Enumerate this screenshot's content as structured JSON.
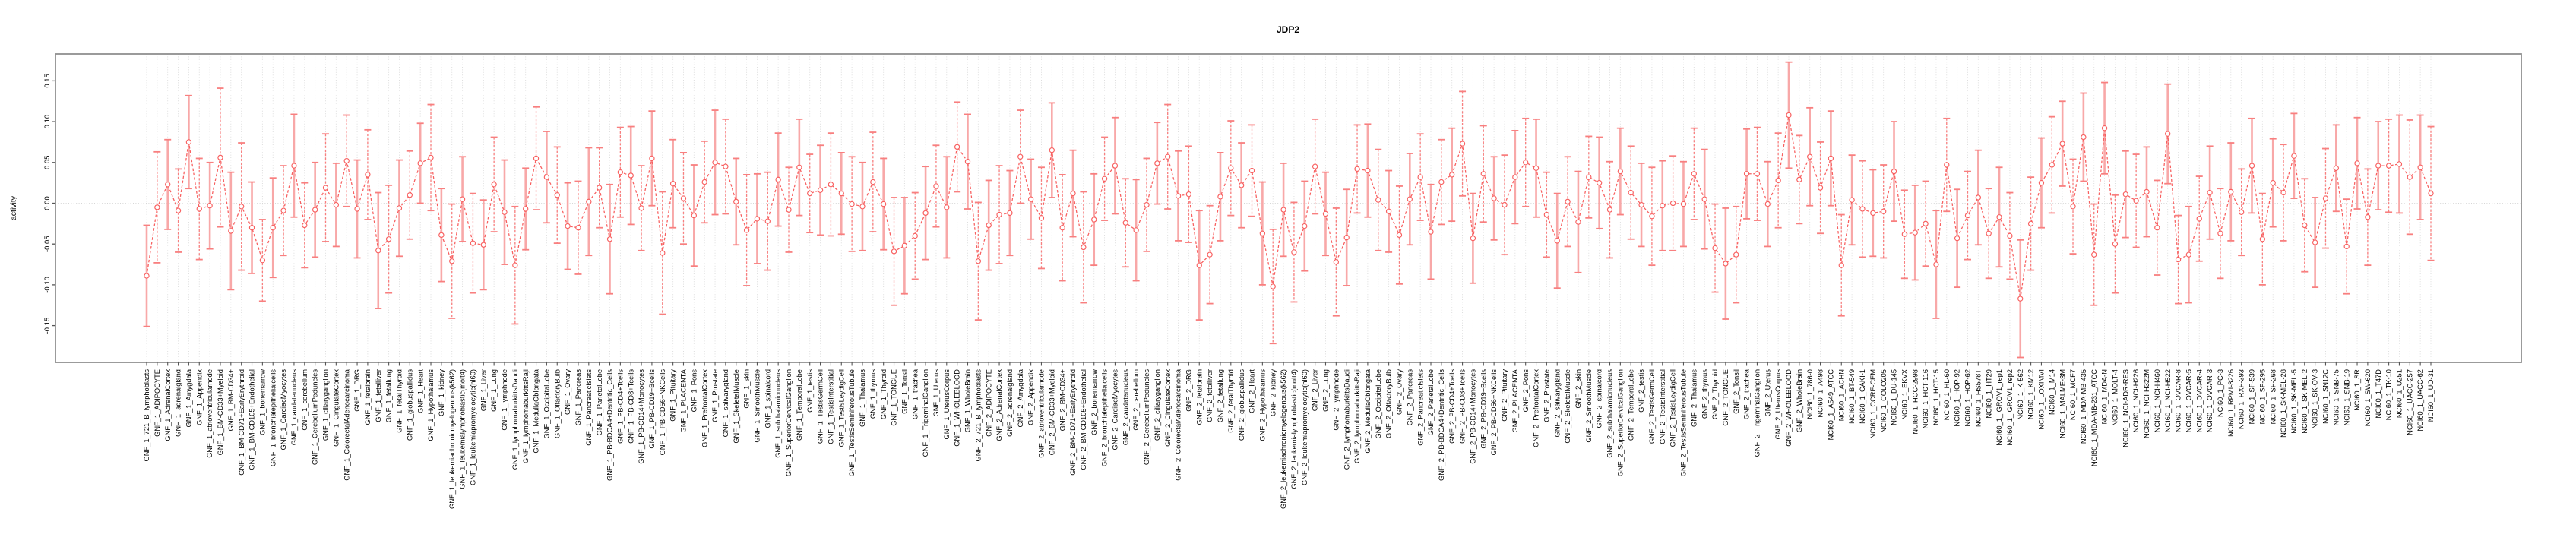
{
  "chart_data": {
    "type": "scatter",
    "title": "JDP2",
    "xlabel": "",
    "ylabel": "activity",
    "ylim": [
      -0.195,
      0.185
    ],
    "grid": "vertical-dotted-per-category-plus-zero-line",
    "legend": "none",
    "marker": "open-circle",
    "line_style": "dashed",
    "colors": {
      "series": "#f85f5f",
      "errorbar_solid": "#f8a8a8",
      "errorbar_dashed": "#f87f7f",
      "gridline": "#dadada",
      "frame": "#909090"
    },
    "yticks": {
      "values": [
        0.15,
        0.1,
        0.05,
        0.0,
        -0.05,
        -0.1,
        -0.15
      ],
      "labels": [
        "0.15",
        "0.10",
        "0.05",
        "0.00",
        "-0.05",
        "-0.10",
        "-0.15"
      ]
    },
    "categories": [
      "GNF_1_721_B_lymphoblasts",
      "GNF_1_ADIPOCYTE",
      "GNF_1_AdrenalCortex",
      "GNF_1_adrenalgland",
      "GNF_1_Amygdala",
      "GNF_1_Appendix",
      "GNF_1_atrioventricularnode",
      "GNF_1_BM-CD33+Myeloid",
      "GNF_1_BM-CD34+",
      "GNF_1_BM-CD71+EarlyErythroid",
      "GNF_1_BM-CD105+Endothelial",
      "GNF_1_bonemarrow",
      "GNF_1_bronchialepithelialcells",
      "GNF_1_CardiacMyocytes",
      "GNF_1_caudatenucleus",
      "GNF_1_cerebellum",
      "GNF_1_CerebellumPeduncles",
      "GNF_1_ciliaryganglion",
      "GNF_1_CingulateCortex",
      "GNF_1_ColorectalAdenocarcinoma",
      "GNF_1_DRG",
      "GNF_1_fetalbrain",
      "GNF_1_fetalliver",
      "GNF_1_fetallung",
      "GNF_1_fetalThyroid",
      "GNF_1_globuspallidus",
      "GNF_1_Heart",
      "GNF_1_Hypothalamus",
      "GNF_1_kidney",
      "GNF_1_leukemiachronicmyelogenous(k562)",
      "GNF_1_leukemialymphoblastic(molt4)",
      "GNF_1_leukemiapromyelocytic(hl60)",
      "GNF_1_Liver",
      "GNF_1_Lung",
      "GNF_1_lymphnode",
      "GNF_1_lymphomaburkittsDaudi",
      "GNF_1_lymphomaburkittsRaji",
      "GNF_1_MedullaOblongata",
      "GNF_1_OccipitalLobe",
      "GNF_1_OlfactoryBulb",
      "GNF_1_Ovary",
      "GNF_1_Pancreas",
      "GNF_1_PancreaticIslets",
      "GNF_1_ParietalLobe",
      "GNF_1_PB-BDCA4+Dentritic_Cells",
      "GNF_1_PB-CD4+Tcells",
      "GNF_1_PB-CD8+Tcells",
      "GNF_1_PB-CD14+Monocytes",
      "GNF_1_PB-CD19+Bcells",
      "GNF_1_PB-CD56+NKCells",
      "GNF_1_Pituitary",
      "GNF_1_PLACENTA",
      "GNF_1_Pons",
      "GNF_1_PrefrontalCortex",
      "GNF_1_Prostate",
      "GNF_1_salivarygland",
      "GNF_1_SkeletalMuscle",
      "GNF_1_skin",
      "GNF_1_SmoothMuscle",
      "GNF_1_spinalcord",
      "GNF_1_subthalamicnucleus",
      "GNF_1_SuperiorCervicalGanglion",
      "GNF_1_TemporalLobe",
      "GNF_1_testis",
      "GNF_1_TestisGermCell",
      "GNF_1_TestisInterstitial",
      "GNF_1_TestisLeydigCell",
      "GNF_1_TestisSeminiferousTubule",
      "GNF_1_Thalamus",
      "GNF_1_thymus",
      "GNF_1_Thyroid",
      "GNF_1_TONGUE",
      "GNF_1_Tonsil",
      "GNF_1_trachea",
      "GNF_1_TrigeminalGanglion",
      "GNF_1_Uterus",
      "GNF_1_UterusCorpus",
      "GNF_1_WHOLEBLOOD",
      "GNF_1_WholeBrain",
      "GNF_2_721_B_lymphoblasts",
      "GNF_2_ADIPOCYTE",
      "GNF_2_AdrenalCortex",
      "GNF_2_adrenalgland",
      "GNF_2_Amygdala",
      "GNF_2_Appendix",
      "GNF_2_atrioventricularnode",
      "GNF_2_BM-CD33+Myeloid",
      "GNF_2_BM-CD34+",
      "GNF_2_BM-CD71+EarlyErythroid",
      "GNF_2_BM-CD105+Endothelial",
      "GNF_2_bonemarrow",
      "GNF_2_bronchialepithelialcells",
      "GNF_2_CardiacMyocytes",
      "GNF_2_caudatenucleus",
      "GNF_2_cerebellum",
      "GNF_2_CerebellumPeduncles",
      "GNF_2_ciliaryganglion",
      "GNF_2_CingulateCortex",
      "GNF_2_ColorectalAdenocarcinoma",
      "GNF_2_DRG",
      "GNF_2_fetalbrain",
      "GNF_2_fetalliver",
      "GNF_2_fetallung",
      "GNF_2_fetalThyroid",
      "GNF_2_globuspallidus",
      "GNF_2_Heart",
      "GNF_2_Hypothalamus",
      "GNF_2_kidney",
      "GNF_2_leukemiachronicmyelogenous(k562)",
      "GNF_2_leukemialymphoblastic(molt4)",
      "GNF_2_leukemiapromyelocytic(hl60)",
      "GNF_2_Liver",
      "GNF_2_Lung",
      "GNF_2_lymphnode",
      "GNF_2_lymphomaburkittsDaudi",
      "GNF_2_lymphomaburkittsRaji",
      "GNF_2_MedullaOblongata",
      "GNF_2_OccipitalLobe",
      "GNF_2_OlfactoryBulb",
      "GNF_2_Ovary",
      "GNF_2_Pancreas",
      "GNF_2_PancreaticIslets",
      "GNF_2_ParietalLobe",
      "GNF_2_PB-BDCA4+Dentritic_Cells",
      "GNF_2_PB-CD4+Tcells",
      "GNF_2_PB-CD8+Tcells",
      "GNF_2_PB-CD14+Monocytes",
      "GNF_2_PB-CD19+Bcells",
      "GNF_2_PB-CD56+NKCells",
      "GNF_2_Pituitary",
      "GNF_2_PLACENTA",
      "GNF_2_Pons",
      "GNF_2_PrefrontalCortex",
      "GNF_2_Prostate",
      "GNF_2_salivarygland",
      "GNF_2_SkeletalMuscle",
      "GNF_2_skin",
      "GNF_2_SmoothMuscle",
      "GNF_2_spinalcord",
      "GNF_2_subthalamicnucleus",
      "GNF_2_SuperiorCervicalGanglion",
      "GNF_2_TemporalLobe",
      "GNF_2_testis",
      "GNF_2_TestisGermCell",
      "GNF_2_TestisInterstitial",
      "GNF_2_TestisLeydigCell",
      "GNF_2_TestisSeminiferousTubule",
      "GNF_2_Thalamus",
      "GNF_2_thymus",
      "GNF_2_Thyroid",
      "GNF_2_TONGUE",
      "GNF_2_Tonsil",
      "GNF_2_trachea",
      "GNF_2_TrigeminalGanglion",
      "GNF_2_Uterus",
      "GNF_2_UterusCorpus",
      "GNF_2_WHOLEBLOOD",
      "GNF_2_WholeBrain",
      "NCI60_1_786-0",
      "NCI60_1_A498",
      "NCI60_1_A549_ATCC",
      "NCI60_1_ACHN",
      "NCI60_1_BT-549",
      "NCI60_1_CAKI-1",
      "NCI60_1_CCRF-CEM",
      "NCI60_1_COLO205",
      "NCI60_1_DU-145",
      "NCI60_1_EKVX",
      "NCI60_1_HCC-2998",
      "NCI60_1_HCT-116",
      "NCI60_1_HCT-15",
      "NCI60_1_HL-60",
      "NCI60_1_HOP-92",
      "NCI60_1_HOP-62",
      "NCI60_1_HS578T",
      "NCI60_1_HT29",
      "NCI60_1_IGROV1_rep1",
      "NCI60_1_IGROV1_rep2",
      "NCI60_1_K-562",
      "NCI60_1_KM12",
      "NCI60_1_LOXIMVI",
      "NCI60_1_M14",
      "NCI60_1_MALME-3M",
      "NCI60_1_MCF7",
      "NCI60_1_MDA-MB-435",
      "NCI60_1_MDA-MB-231_ATCC",
      "NCI60_1_MDA-N",
      "NCI60_1_MOLT-4",
      "NCI60_1_NCI-ADR-RES",
      "NCI60_1_NCI-H226",
      "NCI60_1_NCI-H322M",
      "NCI60_1_NCI-H460",
      "NCI60_1_NCI-H522",
      "NCI60_1_OVCAR-8",
      "NCI60_1_OVCAR-5",
      "NCI60_1_OVCAR-4",
      "NCI60_1_OVCAR-3",
      "NCI60_1_PC-3",
      "NCI60_1_RPMI-8226",
      "NCI60_1_RXF-393",
      "NCI60_1_SF-539",
      "NCI60_1_SF-295",
      "NCI60_1_SF-268",
      "NCI60_1_SK-MEL-28",
      "NCI60_1_SK-MEL-5",
      "NCI60_1_SK-MEL-2",
      "NCI60_1_SK-OV-3",
      "NCI60_1_SN12C",
      "NCI60_1_SNB-75",
      "NCI60_1_SNB-19",
      "NCI60_1_SR",
      "NCI60_1_SW-620",
      "NCI60_1_T47D",
      "NCI60_1_TK-10",
      "NCI60_1_U251",
      "NCI60_1_UACC-257",
      "NCI60_1_UACC-62",
      "NCI60_1_UO-31"
    ],
    "values": [
      -0.089,
      -0.005,
      0.023,
      -0.009,
      0.075,
      -0.007,
      -0.003,
      0.056,
      -0.034,
      -0.004,
      -0.03,
      -0.07,
      -0.03,
      -0.009,
      0.046,
      -0.027,
      -0.008,
      0.019,
      -0.002,
      0.052,
      -0.007,
      0.035,
      -0.058,
      -0.044,
      -0.006,
      0.01,
      0.049,
      0.056,
      -0.039,
      -0.071,
      0.005,
      -0.049,
      -0.051,
      0.023,
      -0.011,
      -0.076,
      -0.007,
      0.055,
      0.032,
      0.01,
      -0.028,
      -0.03,
      0.002,
      0.019,
      -0.044,
      0.038,
      0.034,
      -0.006,
      0.055,
      -0.061,
      0.024,
      0.006,
      -0.015,
      0.026,
      0.05,
      0.045,
      0.002,
      -0.033,
      -0.019,
      -0.022,
      0.029,
      -0.008,
      0.044,
      0.012,
      0.016,
      0.023,
      0.012,
      -0.001,
      -0.004,
      0.026,
      -0.001,
      -0.059,
      -0.052,
      -0.04,
      -0.012,
      0.021,
      -0.005,
      0.069,
      0.051,
      -0.071,
      -0.027,
      -0.014,
      -0.012,
      0.057,
      0.005,
      -0.018,
      0.065,
      -0.03,
      0.012,
      -0.054,
      -0.02,
      0.03,
      0.046,
      -0.024,
      -0.033,
      -0.002,
      0.049,
      0.057,
      0.009,
      0.011,
      -0.076,
      -0.063,
      0.008,
      0.043,
      0.022,
      0.04,
      -0.037,
      -0.102,
      -0.008,
      -0.06,
      -0.028,
      0.045,
      -0.013,
      -0.072,
      -0.042,
      0.042,
      0.04,
      0.004,
      -0.01,
      -0.039,
      0.005,
      0.032,
      -0.035,
      0.026,
      0.035,
      0.073,
      -0.043,
      0.036,
      0.006,
      -0.002,
      0.032,
      0.05,
      0.043,
      -0.014,
      -0.046,
      0.002,
      -0.023,
      0.032,
      0.025,
      -0.008,
      0.039,
      0.013,
      -0.002,
      -0.016,
      -0.003,
      0.0,
      -0.001,
      0.036,
      0.005,
      -0.055,
      -0.074,
      -0.063,
      0.036,
      0.036,
      -0.001,
      0.028,
      0.108,
      0.029,
      0.057,
      0.019,
      0.055,
      -0.076,
      0.004,
      -0.007,
      -0.012,
      -0.01,
      0.039,
      -0.038,
      -0.036,
      -0.025,
      -0.075,
      0.047,
      -0.043,
      -0.015,
      0.007,
      -0.037,
      -0.017,
      -0.04,
      -0.117,
      -0.025,
      0.025,
      0.047,
      0.073,
      -0.004,
      0.081,
      -0.063,
      0.092,
      -0.05,
      0.011,
      0.003,
      0.014,
      -0.03,
      0.085,
      -0.069,
      -0.063,
      -0.019,
      0.013,
      -0.037,
      0.014,
      -0.011,
      0.046,
      -0.044,
      0.025,
      0.013,
      0.058,
      -0.027,
      -0.048,
      0.006,
      0.043,
      -0.053,
      0.049,
      -0.017,
      0.046,
      0.046,
      0.048,
      0.032,
      0.044,
      0.012
    ],
    "errors": [
      0.062,
      0.068,
      0.055,
      0.051,
      0.057,
      0.062,
      0.053,
      0.085,
      0.072,
      0.078,
      0.056,
      0.05,
      0.061,
      0.055,
      0.063,
      0.052,
      0.058,
      0.066,
      0.051,
      0.056,
      0.06,
      0.055,
      0.071,
      0.066,
      0.059,
      0.054,
      0.049,
      0.065,
      0.057,
      0.07,
      0.052,
      0.061,
      0.055,
      0.058,
      0.064,
      0.072,
      0.05,
      0.063,
      0.056,
      0.059,
      0.053,
      0.057,
      0.066,
      0.049,
      0.067,
      0.055,
      0.06,
      0.052,
      0.058,
      0.075,
      0.054,
      0.056,
      0.062,
      0.05,
      0.064,
      0.058,
      0.053,
      0.068,
      0.055,
      0.06,
      0.057,
      0.052,
      0.059,
      0.048,
      0.055,
      0.063,
      0.05,
      0.058,
      0.054,
      0.061,
      0.056,
      0.066,
      0.059,
      0.053,
      0.057,
      0.05,
      0.062,
      0.055,
      0.058,
      0.072,
      0.055,
      0.06,
      0.052,
      0.057,
      0.049,
      0.062,
      0.058,
      0.065,
      0.053,
      0.068,
      0.056,
      0.051,
      0.059,
      0.054,
      0.062,
      0.057,
      0.05,
      0.064,
      0.055,
      0.059,
      0.067,
      0.06,
      0.054,
      0.058,
      0.052,
      0.056,
      0.063,
      0.07,
      0.057,
      0.061,
      0.055,
      0.058,
      0.051,
      0.066,
      0.059,
      0.054,
      0.057,
      0.062,
      0.05,
      0.06,
      0.056,
      0.053,
      0.058,
      0.052,
      0.057,
      0.064,
      0.055,
      0.059,
      0.051,
      0.061,
      0.057,
      0.054,
      0.06,
      0.052,
      0.058,
      0.055,
      0.062,
      0.05,
      0.056,
      0.059,
      0.053,
      0.057,
      0.051,
      0.06,
      0.055,
      0.058,
      0.052,
      0.056,
      0.061,
      0.054,
      0.068,
      0.059,
      0.055,
      0.057,
      0.052,
      0.058,
      0.065,
      0.054,
      0.06,
      0.056,
      0.058,
      0.062,
      0.055,
      0.059,
      0.053,
      0.057,
      0.061,
      0.054,
      0.058,
      0.052,
      0.066,
      0.057,
      0.06,
      0.054,
      0.058,
      0.055,
      0.061,
      0.053,
      0.072,
      0.057,
      0.055,
      0.059,
      0.052,
      0.058,
      0.054,
      0.062,
      0.056,
      0.06,
      0.053,
      0.057,
      0.055,
      0.058,
      0.061,
      0.054,
      0.059,
      0.052,
      0.057,
      0.055,
      0.06,
      0.053,
      0.058,
      0.056,
      0.054,
      0.059,
      0.052,
      0.057,
      0.055,
      0.061,
      0.053,
      0.058,
      0.056,
      0.059,
      0.054,
      0.057,
      0.06,
      0.07,
      0.064,
      0.082
    ]
  }
}
